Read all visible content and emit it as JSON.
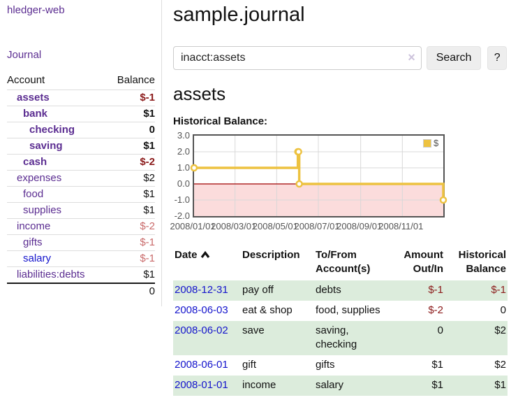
{
  "sidebar": {
    "title": "hledger-web",
    "nav": {
      "journal": "Journal"
    },
    "accounts": {
      "headers": {
        "account": "Account",
        "balance": "Balance"
      },
      "rows": [
        {
          "account": "assets",
          "balance": "$-1",
          "depth": 1,
          "bold": true,
          "balance_tone": "negative",
          "link_tone": "visited"
        },
        {
          "account": "bank",
          "balance": "$1",
          "depth": 2,
          "bold": true,
          "balance_tone": "normal",
          "link_tone": "visited"
        },
        {
          "account": "checking",
          "balance": "0",
          "depth": 3,
          "bold": true,
          "balance_tone": "normal",
          "link_tone": "visited"
        },
        {
          "account": "saving",
          "balance": "$1",
          "depth": 3,
          "bold": true,
          "balance_tone": "normal",
          "link_tone": "visited"
        },
        {
          "account": "cash",
          "balance": "$-2",
          "depth": 2,
          "bold": true,
          "balance_tone": "negative",
          "link_tone": "visited"
        },
        {
          "account": "expenses",
          "balance": "$2",
          "depth": 1,
          "bold": false,
          "balance_tone": "normal",
          "link_tone": "visited"
        },
        {
          "account": "food",
          "balance": "$1",
          "depth": 2,
          "bold": false,
          "balance_tone": "normal",
          "link_tone": "visited"
        },
        {
          "account": "supplies",
          "balance": "$1",
          "depth": 2,
          "bold": false,
          "balance_tone": "normal",
          "link_tone": "visited"
        },
        {
          "account": "income",
          "balance": "$-2",
          "depth": 1,
          "bold": false,
          "balance_tone": "negative-soft",
          "link_tone": "visited"
        },
        {
          "account": "gifts",
          "balance": "$-1",
          "depth": 2,
          "bold": false,
          "balance_tone": "negative-soft",
          "link_tone": "visited"
        },
        {
          "account": "salary",
          "balance": "$-1",
          "depth": 2,
          "bold": false,
          "balance_tone": "negative-soft",
          "link_tone": "unvisited"
        },
        {
          "account": "liabilities:debts",
          "balance": "$1",
          "depth": 1,
          "bold": false,
          "balance_tone": "normal",
          "link_tone": "visited"
        }
      ],
      "total": "0"
    }
  },
  "main": {
    "title": "sample.journal",
    "search": {
      "value": "inacct:assets",
      "clear_icon": "×",
      "search_label": "Search",
      "help_label": "?"
    },
    "account_heading": "assets",
    "section_label": "Historical Balance:"
  },
  "chart_data": {
    "type": "line",
    "style": "step",
    "title": "Historical Balance",
    "series": [
      {
        "name": "$",
        "color": "#edc240",
        "points": [
          [
            "2008-01-01",
            1
          ],
          [
            "2008-06-01",
            2
          ],
          [
            "2008-06-02",
            2
          ],
          [
            "2008-06-03",
            0
          ],
          [
            "2008-12-31",
            -1
          ]
        ]
      }
    ],
    "x_range": [
      "2008-01-01",
      "2008-12-31"
    ],
    "ylim": [
      -2,
      3
    ],
    "yticks": [
      "3.0",
      "2.0",
      "1.0",
      "0.0",
      "-1.0",
      "-2.0"
    ],
    "xticks": [
      {
        "date": "2008-01-01",
        "label": "2008/01/01"
      },
      {
        "date": "2008-03-01",
        "label": "2008/03/01"
      },
      {
        "date": "2008-05-01",
        "label": "2008/05/01"
      },
      {
        "date": "2008-07-01",
        "label": "2008/07/01"
      },
      {
        "date": "2008-09-01",
        "label": "2008/09/01"
      },
      {
        "date": "2008-11-01",
        "label": "2008/11/01"
      }
    ],
    "legend": {
      "label": "$",
      "position": "top-right"
    },
    "grid": true,
    "negative_region_shaded": true
  },
  "register": {
    "headers": {
      "date": "Date",
      "description": "Description",
      "tofrom": "To/From Account(s)",
      "amount": "Amount Out/In",
      "balance": "Historical Balance"
    },
    "sort_icon": "chevron-up",
    "rows": [
      {
        "date": "2008-12-31",
        "description": "pay off",
        "tofrom": "debts",
        "amount": "$-1",
        "balance": "$-1"
      },
      {
        "date": "2008-06-03",
        "description": "eat & shop",
        "tofrom": "food, supplies",
        "amount": "$-2",
        "balance": "0"
      },
      {
        "date": "2008-06-02",
        "description": "save",
        "tofrom": "saving, checking",
        "amount": "0",
        "balance": "$2"
      },
      {
        "date": "2008-06-01",
        "description": "gift",
        "tofrom": "gifts",
        "amount": "$1",
        "balance": "$2"
      },
      {
        "date": "2008-01-01",
        "description": "income",
        "tofrom": "salary",
        "amount": "$1",
        "balance": "$1"
      }
    ]
  },
  "colors": {
    "link_purple": "#5b2d91",
    "link_blue": "#1414cc",
    "negative": "#8b1a1a",
    "negative_soft": "#c96a6a",
    "row_green": "#dcecdc",
    "chart_gold": "#edc240",
    "chart_border": "#545454",
    "grid_line": "#d8d8d8",
    "area_pink": "#fbdcdc",
    "zero_line": "#a00000"
  }
}
